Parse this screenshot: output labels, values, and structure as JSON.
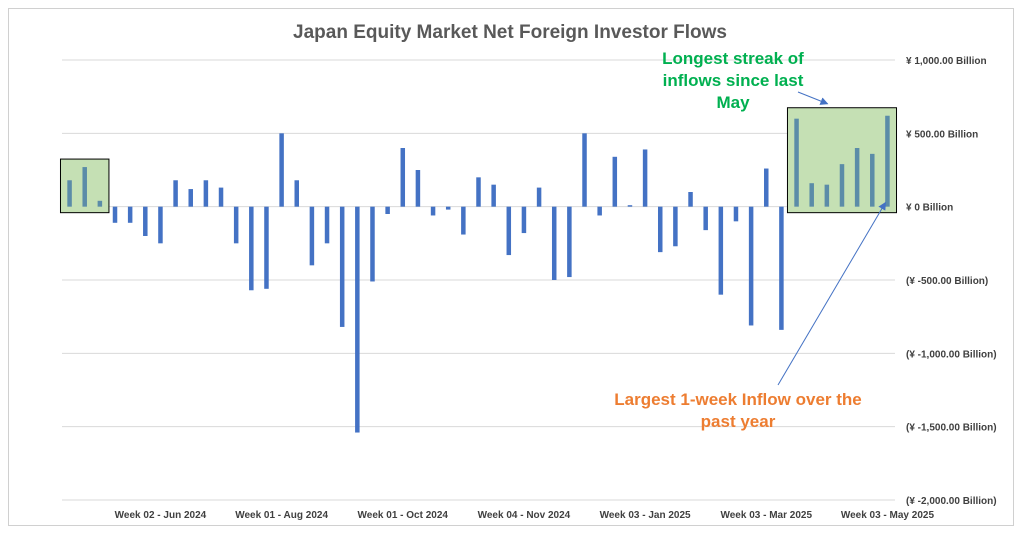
{
  "chart_data": {
    "type": "bar",
    "title": "Japan Equity Market Net Foreign Investor Flows",
    "y_unit": "¥ Billion",
    "ylim": [
      -2000,
      1000
    ],
    "y_ticks": [
      {
        "value": 1000,
        "label": "¥ 1,000.00  Billion"
      },
      {
        "value": 500,
        "label": "¥ 500.00  Billion"
      },
      {
        "value": 0,
        "label": "¥ 0 Billion"
      },
      {
        "value": -500,
        "label": "(¥ -500.00  Billion)"
      },
      {
        "value": -1000,
        "label": "(¥ -1,000.00  Billion)"
      },
      {
        "value": -1500,
        "label": "(¥ -1,500.00  Billion)"
      },
      {
        "value": -2000,
        "label": "(¥ -2,000.00  Billion)"
      }
    ],
    "x_tick_labels": [
      {
        "index": 6,
        "label": "Week 02 - Jun 2024"
      },
      {
        "index": 14,
        "label": "Week 01 - Aug 2024"
      },
      {
        "index": 22,
        "label": "Week 01 - Oct 2024"
      },
      {
        "index": 30,
        "label": "Week 04 - Nov 2024"
      },
      {
        "index": 38,
        "label": "Week 03 - Jan 2025"
      },
      {
        "index": 46,
        "label": "Week 03 - Mar 2025"
      },
      {
        "index": 54,
        "label": "Week 03 - May 2025"
      }
    ],
    "values": [
      180,
      270,
      40,
      -110,
      -110,
      -200,
      -250,
      180,
      120,
      180,
      130,
      -250,
      -570,
      -560,
      500,
      180,
      -400,
      -250,
      -820,
      -1540,
      -510,
      -50,
      400,
      250,
      -60,
      -20,
      -190,
      200,
      150,
      -330,
      -180,
      130,
      -500,
      -480,
      500,
      -60,
      340,
      10,
      390,
      -310,
      -270,
      100,
      -160,
      -600,
      -100,
      -810,
      260,
      -840,
      600,
      160,
      150,
      290,
      400,
      360,
      620
    ],
    "series_color": "#4472C4",
    "highlight_ranges": [
      {
        "start": 0,
        "end": 2
      },
      {
        "start": 48,
        "end": 54
      }
    ],
    "highlight_fill": "#C5E0B4",
    "grid": true,
    "legend": "none",
    "annotations": [
      {
        "text_lines": [
          "Longest streak of",
          "inflows since last",
          "May"
        ],
        "color": "#00B050",
        "points_to": "highlight-right"
      },
      {
        "text_lines": [
          "Largest 1-week Inflow over the",
          "past year"
        ],
        "color": "#ED7D31",
        "points_to_index": 54
      }
    ]
  }
}
